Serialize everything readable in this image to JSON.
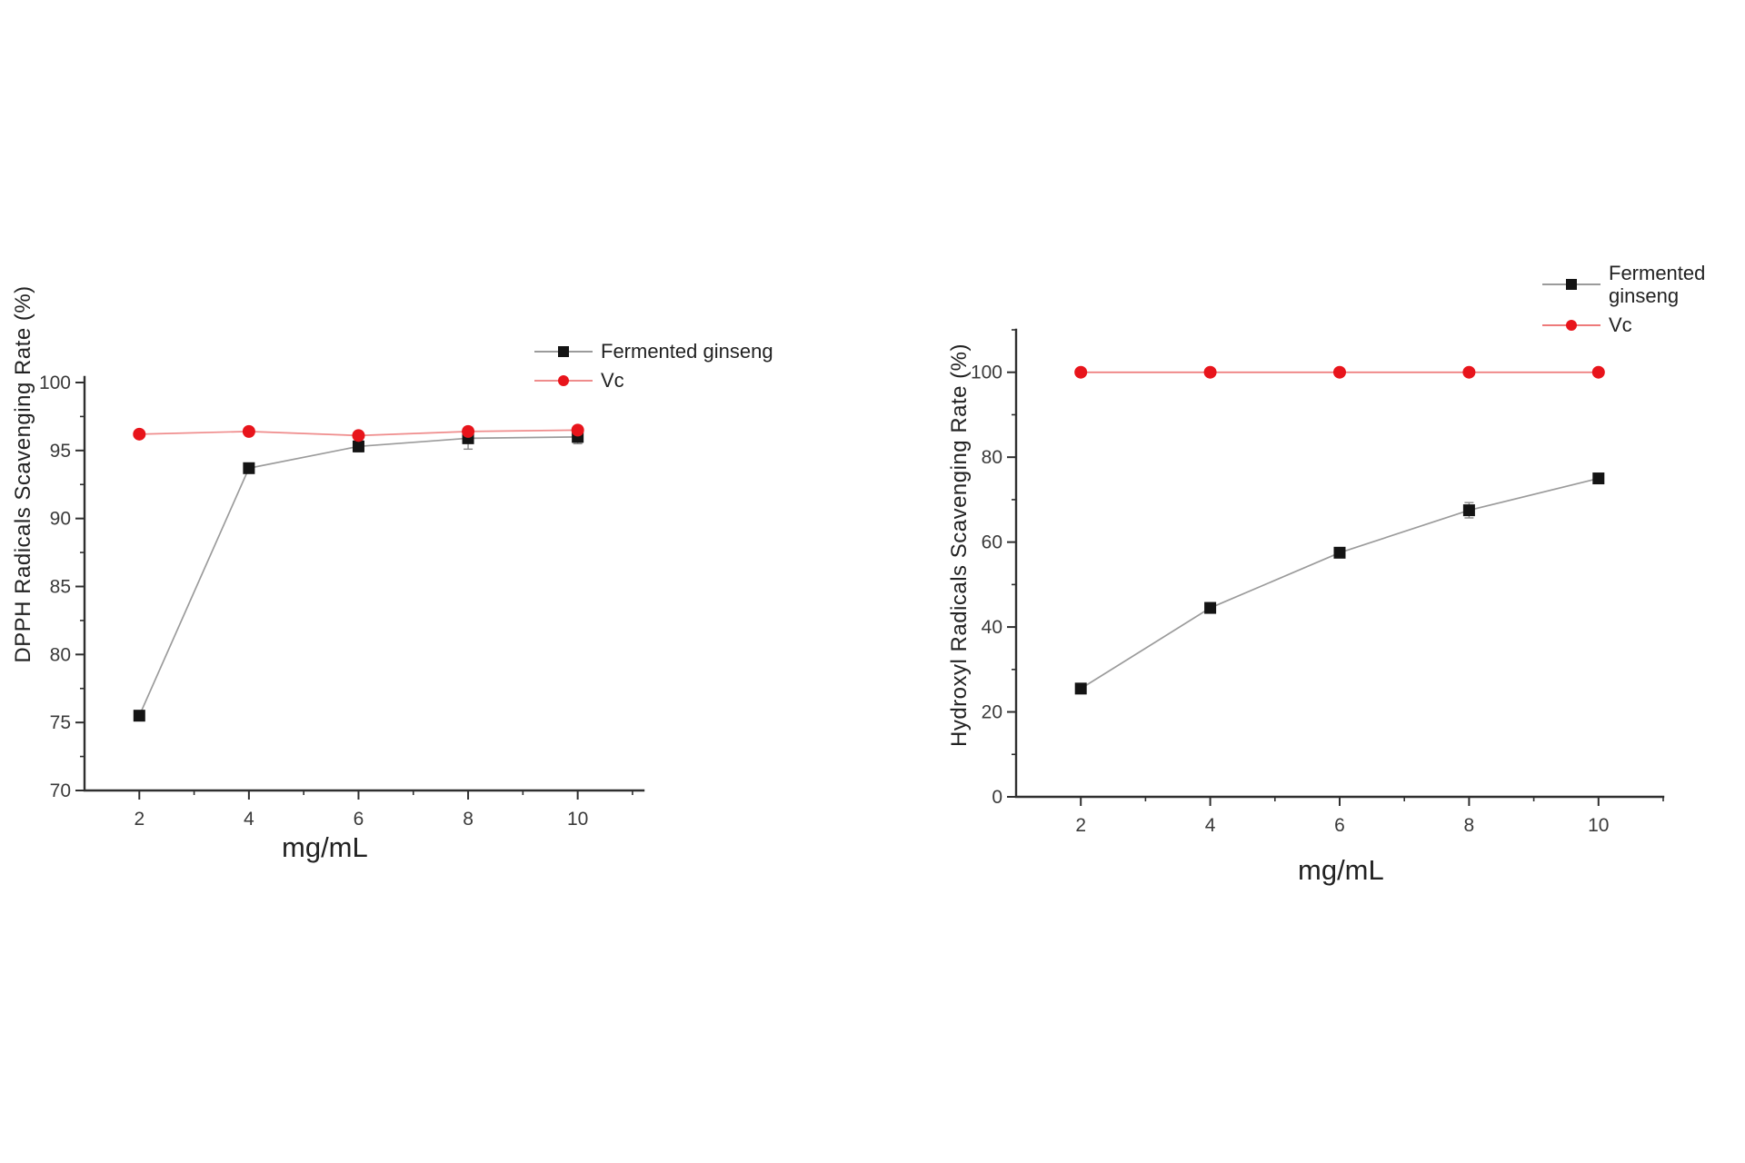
{
  "page": {
    "background": "#ffffff"
  },
  "chart_data": [
    {
      "id": "dpph",
      "type": "line",
      "title": "",
      "xlabel": "mg/mL",
      "ylabel": "DPPH Radicals Scavenging Rate (%)",
      "x": [
        2,
        4,
        6,
        8,
        10
      ],
      "xticks": [
        2,
        4,
        6,
        8,
        10
      ],
      "minor_xticks": [
        3,
        5,
        7,
        9,
        11
      ],
      "yticks": [
        70,
        75,
        80,
        85,
        90,
        95,
        100
      ],
      "minor_yticks": [
        72.5,
        77.5,
        82.5,
        87.5,
        92.5,
        97.5
      ],
      "xlim": [
        1,
        11.2
      ],
      "ylim": [
        70,
        100.4
      ],
      "grid": false,
      "legend_position": "inside-top-right",
      "series": [
        {
          "name": "Fermented ginseng",
          "values": [
            75.5,
            93.7,
            95.3,
            95.9,
            96.0
          ],
          "errors": [
            0.3,
            0.3,
            0.4,
            0.8,
            0.5
          ],
          "marker": "square",
          "marker_color": "#141414",
          "line_color": "#9b9b9b"
        },
        {
          "name": "Vc",
          "values": [
            96.2,
            96.4,
            96.1,
            96.4,
            96.5
          ],
          "errors": [
            0,
            0,
            0,
            0.3,
            0.3
          ],
          "marker": "circle",
          "marker_color": "#e8141b",
          "line_color": "#ef8c8c"
        }
      ]
    },
    {
      "id": "hydroxyl",
      "type": "line",
      "title": "",
      "xlabel": "mg/mL",
      "ylabel": "Hydroxyl Radicals Scavenging Rate (%)",
      "x": [
        2,
        4,
        6,
        8,
        10
      ],
      "xticks": [
        2,
        4,
        6,
        8,
        10
      ],
      "minor_xticks": [
        3,
        5,
        7,
        9,
        11
      ],
      "yticks": [
        0,
        20,
        40,
        60,
        80,
        100
      ],
      "minor_yticks": [
        10,
        30,
        50,
        70,
        90,
        110
      ],
      "xlim": [
        1,
        11
      ],
      "ylim": [
        0,
        110
      ],
      "grid": false,
      "legend_position": "outside-top-right",
      "series": [
        {
          "name": "Fermented ginseng",
          "values": [
            25.5,
            44.5,
            57.5,
            67.5,
            75.0
          ],
          "errors": [
            0.8,
            0.8,
            0.8,
            1.8,
            0.8
          ],
          "marker": "square",
          "marker_color": "#141414",
          "line_color": "#9b9b9b"
        },
        {
          "name": "Vc",
          "values": [
            100,
            100,
            100,
            100,
            100
          ],
          "errors": [
            0,
            0,
            0,
            0,
            0
          ],
          "marker": "circle",
          "marker_color": "#e8141b",
          "line_color": "#ee7a7a"
        }
      ]
    }
  ]
}
